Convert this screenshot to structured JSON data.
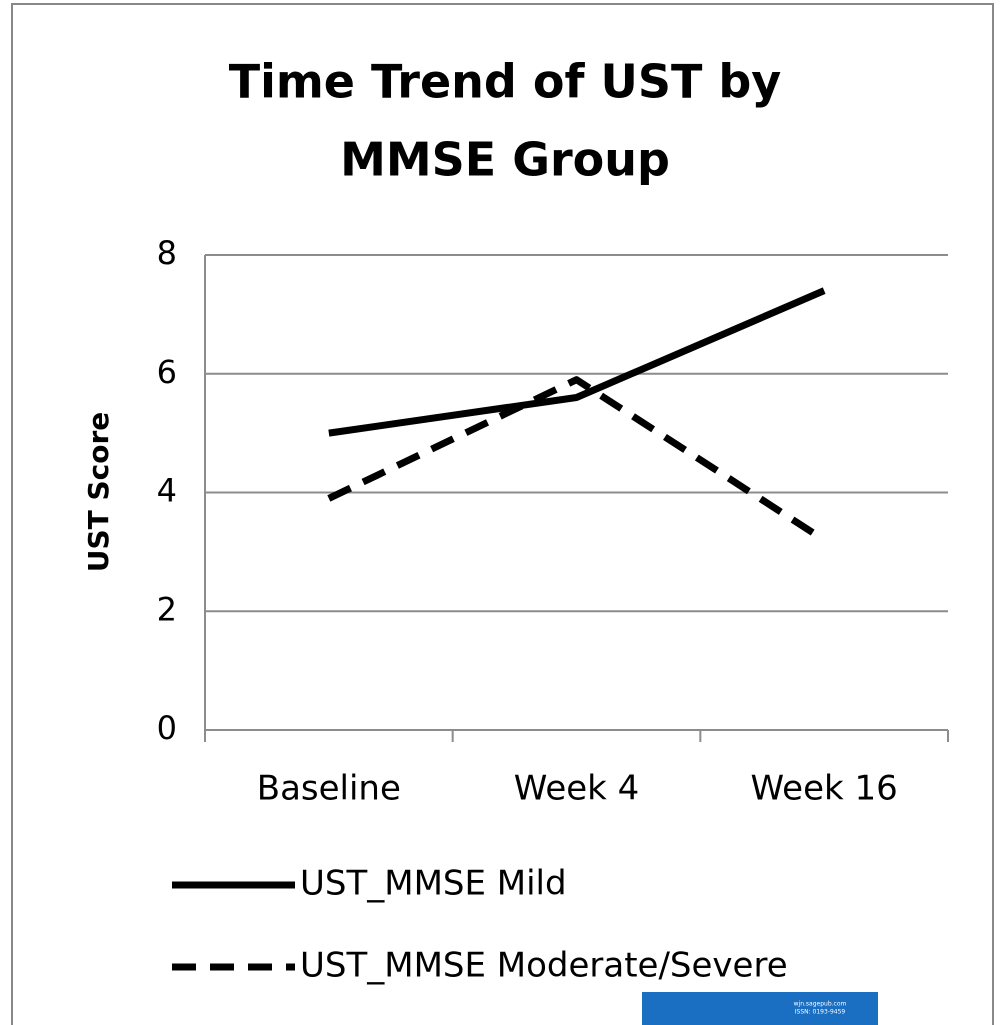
{
  "chart_data": {
    "type": "line",
    "title": [
      "Time Trend of UST by",
      "MMSE Group"
    ],
    "y_label": "UST Score",
    "categories": [
      "Baseline",
      "Week 4",
      "Week 16"
    ],
    "series": [
      {
        "name": "UST_MMSE Mild",
        "color": "#000000",
        "dash": "solid",
        "values": [
          5.0,
          5.6,
          7.4
        ]
      },
      {
        "name": "UST_MMSE Moderate/Severe",
        "color": "#000000",
        "dash": "dashed",
        "values": [
          3.9,
          5.9,
          3.2
        ]
      }
    ],
    "ylim": [
      0,
      8
    ],
    "yticks": [
      0,
      2,
      4,
      6,
      8
    ],
    "grid": true,
    "legend": "bottom",
    "watermark": [
      "wjn.sagepub.com",
      "ISSN: 0193-9459"
    ]
  }
}
